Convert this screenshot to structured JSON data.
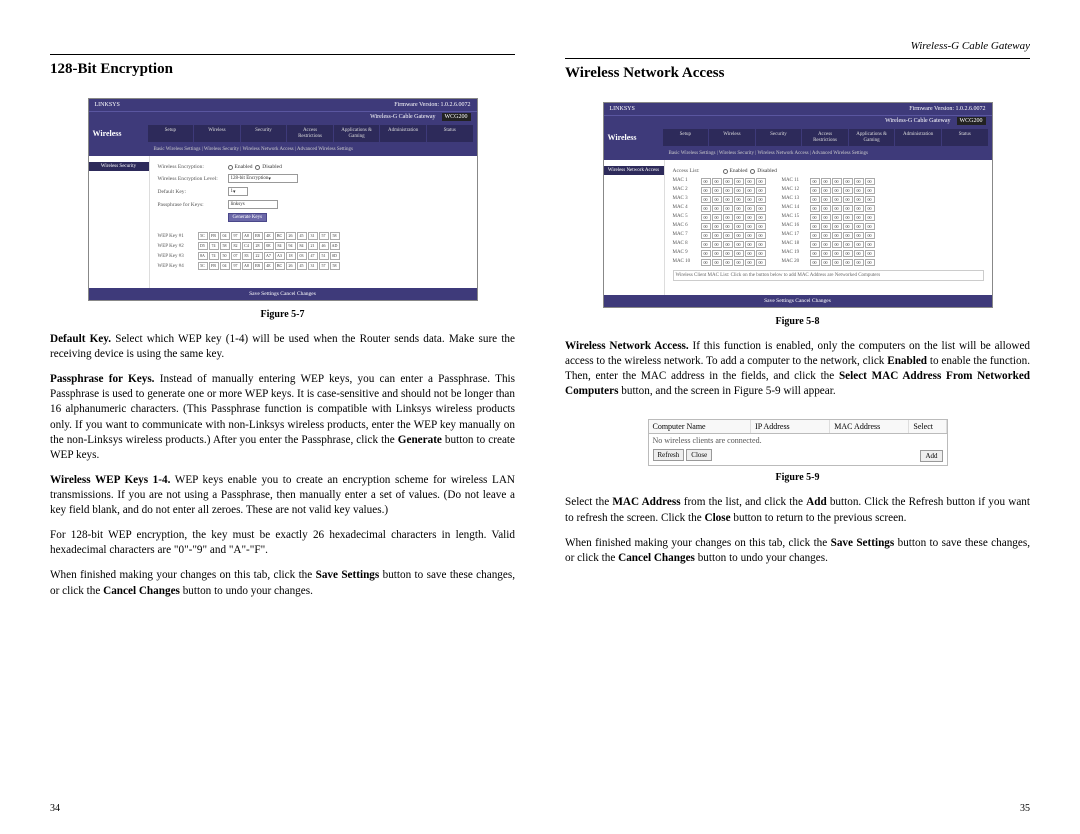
{
  "header": {
    "running": "Wireless-G Cable Gateway"
  },
  "left": {
    "title": "128-Bit Encryption",
    "page_num": "34",
    "figure_caption": "Figure 5-7",
    "screenshot": {
      "brand": "LINKSYS",
      "firmware": "Firmware Version: 1.0.2.6.0072",
      "product": "Wireless-G Cable Gateway",
      "model": "WCG200",
      "main_nav": "Wireless",
      "side_label": "Wireless Security",
      "tabs": [
        "Setup",
        "Wireless",
        "Security",
        "Access Restrictions",
        "Applications & Gaming",
        "Administration",
        "Status"
      ],
      "subnav": "Basic Wireless Settings | Wireless Security | Wireless Network Access | Advanced Wireless Settings",
      "rows": {
        "row1_label": "Wireless Encryption:",
        "row1_opt1": "Enabled",
        "row1_opt2": "Disabled",
        "row2_label": "Wireless Encryption Level:",
        "row2_value": "128-bit Encryption",
        "row3_label": "Default Key:",
        "row3_value": "1",
        "row4_label": "Passphrase for Keys:",
        "row4_value": "linksys",
        "gen_btn": "Generate Keys",
        "k1": "WEP Key #1",
        "k2": "WEP Key #2",
        "k3": "WEP Key #3",
        "k4": "WEP Key #4"
      },
      "footer": "Save Settings    Cancel Changes"
    },
    "para1a": "Default Key.",
    "para1b": " Select which WEP key (1-4) will be used when the Router sends data. Make sure the receiving device is using the same key.",
    "para2a": "Passphrase for Keys.",
    "para2b": " Instead of manually entering WEP keys, you can enter a Passphrase. This Passphrase is used to generate one or more WEP keys. It is case-sensitive and should not be longer than 16 alphanumeric characters. (This Passphrase function is compatible with Linksys wireless products only. If you want to communicate with non-Linksys wireless products, enter the WEP key manually on the non-Linksys wireless products.) After you enter the Passphrase, click the ",
    "para2c": "Generate",
    "para2d": " button to create WEP keys.",
    "para3a": "Wireless WEP Keys 1-4.",
    "para3b": " WEP keys enable you to create an encryption scheme for wireless LAN transmissions. If you are not using a Passphrase, then manually enter a set of values. (Do not leave a key field blank, and do not enter all zeroes. These are not valid key values.)",
    "para4": "For 128-bit WEP encryption, the key must be exactly 26 hexadecimal characters in length. Valid hexadecimal characters are \"0\"-\"9\" and \"A\"-\"F\".",
    "para5a": "When finished making your changes on this tab, click the ",
    "para5b": "Save Settings",
    "para5c": " button to save these changes, or click the ",
    "para5d": "Cancel Changes",
    "para5e": " button to undo your changes."
  },
  "right": {
    "title": "Wireless Network Access",
    "page_num": "35",
    "figure_caption8": "Figure 5-8",
    "figure_caption9": "Figure 5-9",
    "screenshot": {
      "side_label": "Wireless Network Access",
      "access_label": "Access List:",
      "opt1": "Enabled",
      "opt2": "Disabled",
      "mac_prefix": "MAC",
      "mac_value": "00:00:00:00:00:00",
      "note_text": "Wireless Client MAC List: Click on the button below to add MAC Address are Networked Computers",
      "footer": "Save Settings    Cancel Changes"
    },
    "para1a": "Wireless Network Access.",
    "para1b": " If this function is enabled, only the computers on the list will be allowed access to the wireless network. To add a computer to the network, click ",
    "para1c": "Enabled",
    "para1d": " to enable the function. Then, enter the MAC address in the fields, and click the ",
    "para1e": "Select MAC Address From Networked Computers",
    "para1f": " button, and the screen in Figure 5-9 will appear.",
    "small_table": {
      "h1": "Computer Name",
      "h2": "IP Address",
      "h3": "MAC Address",
      "h4": "Select",
      "empty": "No wireless clients are connected.",
      "refresh": "Refresh",
      "close": "Close",
      "add": "Add"
    },
    "para2a": "Select the ",
    "para2b": "MAC Address",
    "para2c": " from the list, and click the ",
    "para2d": "Add",
    "para2e": " button. Click the Refresh button if you want to refresh the screen. Click the ",
    "para2f": "Close",
    "para2g": " button to return to the previous screen.",
    "para3a": "When finished making your changes on this tab, click the ",
    "para3b": "Save Settings",
    "para3c": " button to save these changes, or click the ",
    "para3d": "Cancel Changes",
    "para3e": " button to undo your changes."
  }
}
